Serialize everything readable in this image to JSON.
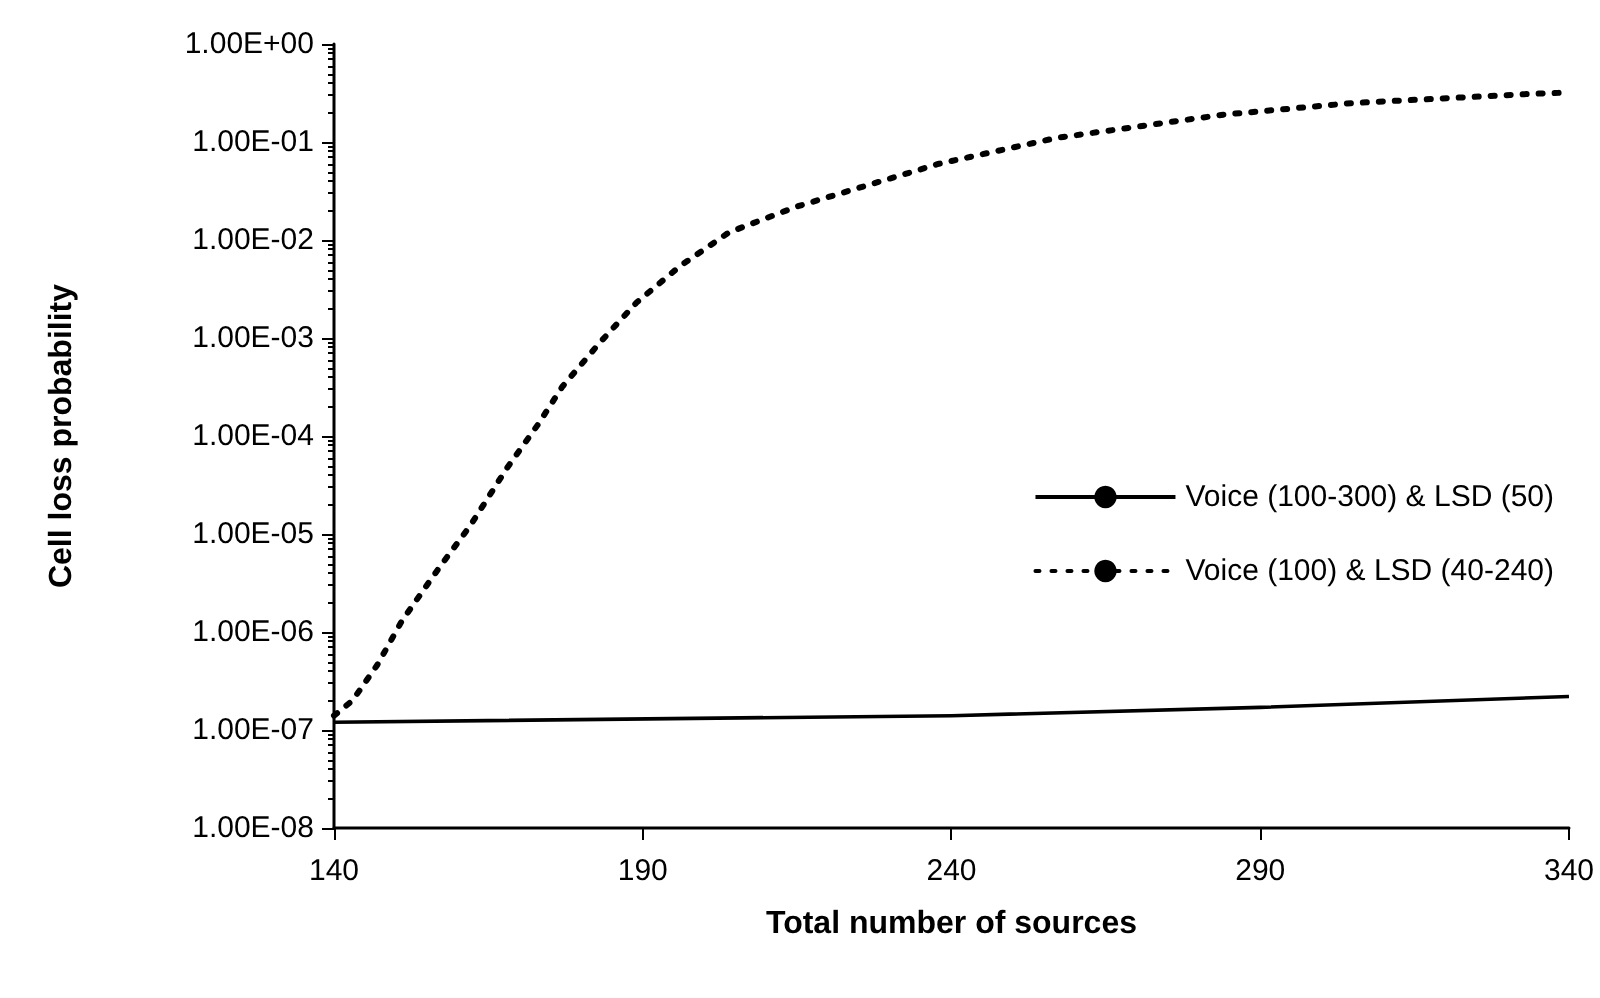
{
  "chart_data": {
    "type": "line",
    "xlabel": "Total number of sources",
    "ylabel": "Cell loss probability",
    "log": "y",
    "grid": false,
    "legend": "right",
    "marker": "none",
    "xlim": [
      140,
      340
    ],
    "xticks": [
      140,
      190,
      240,
      290,
      340
    ],
    "ylim": [
      1e-08,
      1
    ],
    "yticks": [
      {
        "value": 1e-08,
        "label": "1.00E-08"
      },
      {
        "value": 1e-07,
        "label": "1.00E-07"
      },
      {
        "value": 1e-06,
        "label": "1.00E-06"
      },
      {
        "value": 1e-05,
        "label": "1.00E-05"
      },
      {
        "value": 0.0001,
        "label": "1.00E-04"
      },
      {
        "value": 0.001,
        "label": "1.00E-03"
      },
      {
        "value": 0.01,
        "label": "1.00E-02"
      },
      {
        "value": 0.1,
        "label": "1.00E-01"
      },
      {
        "value": 1,
        "label": "1.00E+00"
      }
    ],
    "series": [
      {
        "name": "Voice (100-300) & LSD (50)",
        "color": "#000000",
        "line_style": "solid",
        "x": [
          140,
          240,
          290,
          340
        ],
        "values": [
          1.2e-07,
          1.4e-07,
          1.7e-07,
          2.2e-07
        ]
      },
      {
        "name": "Voice (100) & LSD (40-240)",
        "color": "#000000",
        "line_style": "dotted",
        "x": [
          140,
          143,
          147,
          151,
          157,
          162,
          168,
          173,
          177,
          183,
          189,
          196,
          204,
          215,
          238,
          257,
          284,
          305,
          334,
          340
        ],
        "values": [
          1.4e-07,
          2e-07,
          4.6e-07,
          1.3e-06,
          4.5e-06,
          1.2e-05,
          4.7e-05,
          0.00013,
          0.00032,
          0.00089,
          0.0023,
          0.0054,
          0.012,
          0.022,
          0.06,
          0.11,
          0.19,
          0.25,
          0.31,
          0.32
        ]
      }
    ]
  }
}
